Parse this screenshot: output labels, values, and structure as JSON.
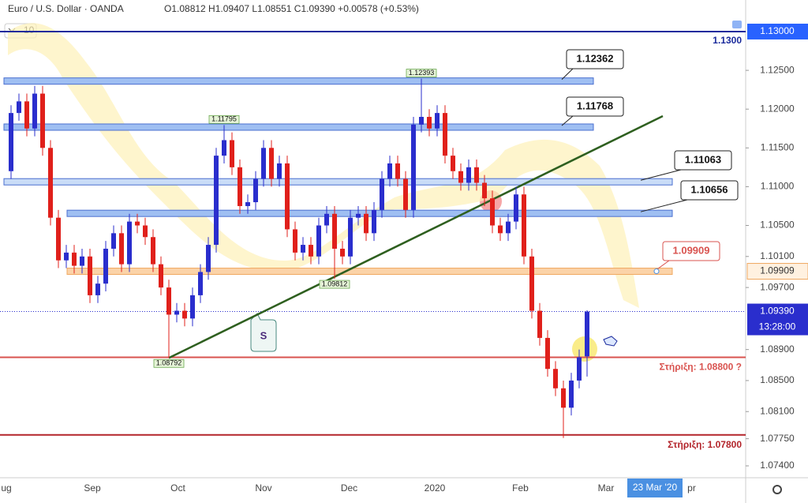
{
  "chart_data": {
    "type": "candlestick",
    "title": "Euro / U.S. Dollar · OANDA",
    "ohlc_text": "O1.08812 H1.09407 L1.08551 C1.09390 +0.00578 (+0.53%)",
    "interval": "10",
    "x_labels": [
      "ug",
      "Sep",
      "Oct",
      "Nov",
      "Dec",
      "2020",
      "Feb",
      "Mar",
      "pr"
    ],
    "time_label": "23 Mar '20",
    "clock": "13:28:00",
    "callout": "S",
    "ylim": [
      1.07247,
      1.13122
    ],
    "yticks": [
      {
        "value": 1.125,
        "label": "1.12500"
      },
      {
        "value": 1.12,
        "label": "1.12000"
      },
      {
        "value": 1.115,
        "label": "1.11500"
      },
      {
        "value": 1.11,
        "label": "1.11000"
      },
      {
        "value": 1.105,
        "label": "1.10500"
      },
      {
        "value": 1.101,
        "label": "1.10100"
      },
      {
        "value": 1.097,
        "label": "1.09700"
      },
      {
        "value": 1.089,
        "label": "1.08900"
      },
      {
        "value": 1.085,
        "label": "1.08500"
      },
      {
        "value": 1.081,
        "label": "1.08100"
      },
      {
        "value": 1.0775,
        "label": "1.07750"
      },
      {
        "value": 1.074,
        "label": "1.07400"
      }
    ],
    "up_color": "#2a2ecd",
    "down_color": "#e0201b",
    "open": [
      1.112,
      1.1195,
      1.121,
      1.1175,
      1.122,
      1.115,
      1.106,
      1.1005,
      1.1015,
      1.0998,
      1.101,
      1.096,
      1.0975,
      1.102,
      1.104,
      1.1,
      1.1055,
      1.105,
      1.1035,
      1.1,
      1.097,
      1.0935,
      1.094,
      1.093,
      1.096,
      1.099,
      1.1025,
      1.114,
      1.116,
      1.1125,
      1.1075,
      1.108,
      1.111,
      1.115,
      1.111,
      1.113,
      1.1045,
      1.1015,
      1.1025,
      1.101,
      1.105,
      1.1065,
      1.102,
      1.101,
      1.106,
      1.1065,
      1.104,
      1.107,
      1.111,
      1.113,
      1.111,
      1.107,
      1.118,
      1.119,
      1.1175,
      1.1195,
      1.114,
      1.112,
      1.1105,
      1.1125,
      1.1105,
      1.1085,
      1.105,
      1.104,
      1.1055,
      1.109,
      1.101,
      1.094,
      1.0905,
      1.0865,
      1.084,
      1.0815,
      1.085,
      1.08812
    ],
    "high": [
      1.1205,
      1.122,
      1.122,
      1.123,
      1.123,
      1.116,
      1.107,
      1.1025,
      1.1025,
      1.102,
      1.102,
      1.0985,
      1.103,
      1.105,
      1.105,
      1.1065,
      1.1065,
      1.106,
      1.1045,
      1.101,
      1.098,
      1.095,
      1.095,
      1.097,
      1.1,
      1.1035,
      1.115,
      1.11795,
      1.117,
      1.1135,
      1.109,
      1.112,
      1.116,
      1.116,
      1.114,
      1.114,
      1.1055,
      1.1035,
      1.1035,
      1.106,
      1.1075,
      1.1075,
      1.103,
      1.107,
      1.1075,
      1.1075,
      1.108,
      1.112,
      1.114,
      1.114,
      1.112,
      1.119,
      1.12393,
      1.12,
      1.1205,
      1.1205,
      1.115,
      1.113,
      1.1135,
      1.1135,
      1.1115,
      1.1095,
      1.106,
      1.1065,
      1.11,
      1.11,
      1.102,
      1.095,
      1.0915,
      1.0875,
      1.085,
      1.086,
      1.089,
      1.09407
    ],
    "low": [
      1.111,
      1.1185,
      1.1165,
      1.1165,
      1.114,
      1.105,
      1.0995,
      1.0995,
      1.0988,
      1.0988,
      1.095,
      1.095,
      1.0965,
      1.101,
      1.099,
      1.099,
      1.104,
      1.1025,
      1.099,
      1.096,
      1.08792,
      1.0925,
      1.092,
      1.092,
      1.095,
      1.098,
      1.1015,
      1.113,
      1.1115,
      1.1065,
      1.1065,
      1.107,
      1.11,
      1.11,
      1.11,
      1.1035,
      1.1005,
      1.1005,
      1.1,
      1.1,
      1.104,
      1.09812,
      1.1,
      1.1,
      1.105,
      1.103,
      1.103,
      1.106,
      1.11,
      1.11,
      1.106,
      1.106,
      1.117,
      1.1165,
      1.1165,
      1.113,
      1.111,
      1.1095,
      1.1095,
      1.1095,
      1.1075,
      1.104,
      1.103,
      1.103,
      1.1045,
      1.1,
      1.093,
      1.0895,
      1.0855,
      1.083,
      1.0776,
      1.0805,
      1.084,
      1.08551
    ],
    "close": [
      1.1195,
      1.121,
      1.1175,
      1.122,
      1.115,
      1.106,
      1.1005,
      1.1015,
      1.0998,
      1.101,
      1.096,
      1.0975,
      1.102,
      1.104,
      1.1,
      1.1055,
      1.105,
      1.1035,
      1.1,
      1.097,
      1.0935,
      1.094,
      1.093,
      1.096,
      1.099,
      1.1025,
      1.114,
      1.116,
      1.1125,
      1.1075,
      1.108,
      1.111,
      1.115,
      1.111,
      1.113,
      1.1045,
      1.1015,
      1.1025,
      1.101,
      1.105,
      1.1065,
      1.102,
      1.101,
      1.106,
      1.1065,
      1.104,
      1.107,
      1.111,
      1.113,
      1.111,
      1.107,
      1.118,
      1.119,
      1.1175,
      1.1195,
      1.114,
      1.112,
      1.1105,
      1.1125,
      1.1105,
      1.1085,
      1.105,
      1.104,
      1.1055,
      1.109,
      1.101,
      1.094,
      1.0905,
      1.0865,
      1.084,
      1.0815,
      1.085,
      1.088,
      1.0939
    ],
    "zones": [
      {
        "value": 1.12362,
        "label": "1.12362",
        "color": "#9fbff2"
      },
      {
        "value": 1.11768,
        "label": "1.11768",
        "color": "#9fbff2"
      },
      {
        "value": 1.11063,
        "label": "1.11063",
        "color": "#c9dcf7"
      },
      {
        "value": 1.10656,
        "label": "1.10656",
        "color": "#9fbff2"
      },
      {
        "value": 1.09909,
        "label": "1.09909",
        "color": "#fbd3a8"
      }
    ],
    "lines": [
      {
        "value": 1.13,
        "label": "1.1300",
        "axis_label": "1.13000",
        "color": "#1a2a9c"
      },
      {
        "value": 1.088,
        "label": "Στήριξη: 1.08800 ?",
        "color": "#d9534f"
      },
      {
        "value": 1.078,
        "label": "Στήριξη: 1.07800",
        "color": "#b3242a"
      }
    ],
    "last_price": {
      "value": 1.0939,
      "label": "1.09390"
    },
    "extremes": [
      {
        "candle": 52,
        "value": 1.12393,
        "label": "1.12393",
        "side": "high"
      },
      {
        "candle": 27,
        "value": 1.11795,
        "label": "1.11795",
        "side": "high"
      },
      {
        "candle": 41,
        "value": 1.09812,
        "label": "1.09812",
        "side": "low"
      },
      {
        "candle": 20,
        "value": 1.08792,
        "label": "1.08792",
        "side": "low"
      }
    ],
    "trendline": {
      "from": [
        20,
        1.08792
      ],
      "to": [
        82.6,
        1.1191
      ],
      "color": "#2e5f1f"
    }
  }
}
